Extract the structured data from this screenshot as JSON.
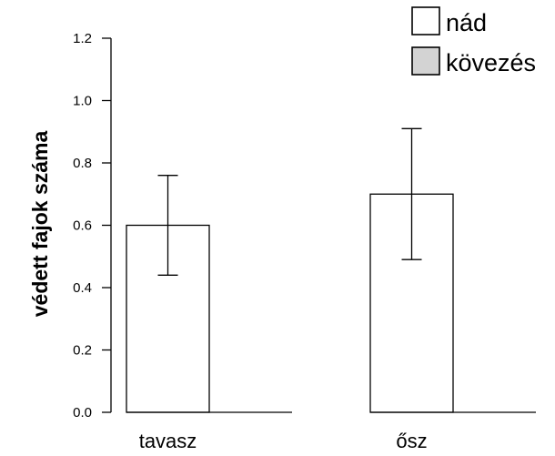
{
  "chart_data": {
    "type": "bar",
    "ylabel": "védett fajok száma",
    "categories": [
      "tavasz",
      "ősz"
    ],
    "ylim": [
      0,
      1.2
    ],
    "yticks": [
      "0.0",
      "0.2",
      "0.4",
      "0.6",
      "0.8",
      "1.0",
      "1.2"
    ],
    "ytick_values": [
      0,
      0.2,
      0.4,
      0.6,
      0.8,
      1.0,
      1.2
    ],
    "grid": false,
    "legend_position": "top-right",
    "series": [
      {
        "name": "nád",
        "color": "#ffffff",
        "values": [
          0.6,
          0.7
        ],
        "error_low": [
          0.44,
          0.49
        ],
        "error_high": [
          0.76,
          0.91
        ]
      },
      {
        "name": "kövezés",
        "color": "#d3d3d3",
        "values": [
          0,
          0
        ],
        "error_low": [
          null,
          null
        ],
        "error_high": [
          null,
          null
        ]
      }
    ]
  }
}
